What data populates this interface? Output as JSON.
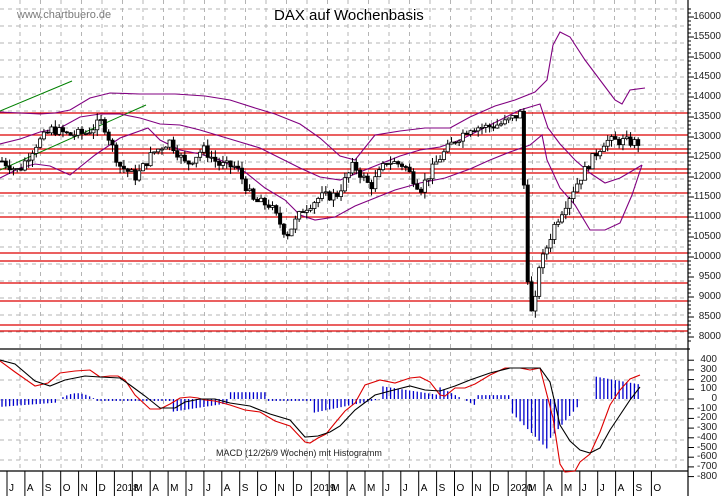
{
  "header": {
    "watermark": "www.chartbuero.de",
    "title": "DAX auf Wochenbasis"
  },
  "macd_panel": {
    "label": "MACD (12/26/9 Wochen) mit Histogramm"
  },
  "colors": {
    "grid": "#b4b4b4",
    "resistance_lines": "#dd0000",
    "bollinger_bands": "#800080",
    "trend_channel": "#008000",
    "candle_down": "#000000",
    "candle_up": "#ffffff",
    "macd_line": "#dd0000",
    "signal_line": "#000000",
    "histogram": "#0000cc"
  },
  "price_axis": {
    "ticks": [
      "16000",
      "15500",
      "15000",
      "14500",
      "14000",
      "13500",
      "13000",
      "12500",
      "12000",
      "11500",
      "11000",
      "10500",
      "10000",
      "9500",
      "9000",
      "8500",
      "8000"
    ]
  },
  "macd_axis": {
    "ticks": [
      "400",
      "300",
      "200",
      "100",
      "0",
      "-100",
      "-200",
      "-300",
      "-400",
      "-500",
      "-600",
      "-700",
      "-800"
    ]
  },
  "time_axis": {
    "labels": [
      "J",
      "A",
      "S",
      "O",
      "N",
      "D",
      "2018",
      "M",
      "A",
      "M",
      "J",
      "J",
      "A",
      "S",
      "O",
      "N",
      "D",
      "2019",
      "M",
      "A",
      "M",
      "J",
      "J",
      "A",
      "S",
      "O",
      "N",
      "D",
      "2020",
      "M",
      "A",
      "M",
      "J",
      "J",
      "A",
      "S",
      "O"
    ]
  },
  "chart_data": [
    {
      "type": "candlestick",
      "title": "DAX auf Wochenbasis",
      "xlabel": "",
      "ylabel": "",
      "ylim": [
        7800,
        16300
      ],
      "grid": true,
      "x_range": "Jul 2017 - Oct 2020 (weekly)",
      "approx_close_path": [
        {
          "date": "2017-07",
          "close": 12400
        },
        {
          "date": "2017-08",
          "close": 12150
        },
        {
          "date": "2017-09",
          "close": 12800
        },
        {
          "date": "2017-10",
          "close": 13200
        },
        {
          "date": "2017-11",
          "close": 13050
        },
        {
          "date": "2017-12",
          "close": 13100
        },
        {
          "date": "2018-01",
          "close": 13400
        },
        {
          "date": "2018-02",
          "close": 12300
        },
        {
          "date": "2018-03",
          "close": 12000
        },
        {
          "date": "2018-04",
          "close": 12600
        },
        {
          "date": "2018-05",
          "close": 12900
        },
        {
          "date": "2018-06",
          "close": 12300
        },
        {
          "date": "2018-07",
          "close": 12700
        },
        {
          "date": "2018-08",
          "close": 12300
        },
        {
          "date": "2018-09",
          "close": 12250
        },
        {
          "date": "2018-10",
          "close": 11400
        },
        {
          "date": "2018-11",
          "close": 11300
        },
        {
          "date": "2018-12",
          "close": 10550
        },
        {
          "date": "2019-01",
          "close": 11200
        },
        {
          "date": "2019-02",
          "close": 11500
        },
        {
          "date": "2019-03",
          "close": 11550
        },
        {
          "date": "2019-04",
          "close": 12300
        },
        {
          "date": "2019-05",
          "close": 11750
        },
        {
          "date": "2019-06",
          "close": 12400
        },
        {
          "date": "2019-07",
          "close": 12300
        },
        {
          "date": "2019-08",
          "close": 11700
        },
        {
          "date": "2019-09",
          "close": 12400
        },
        {
          "date": "2019-10",
          "close": 12900
        },
        {
          "date": "2019-11",
          "close": 13250
        },
        {
          "date": "2019-12",
          "close": 13250
        },
        {
          "date": "2020-01",
          "close": 13350
        },
        {
          "date": "2020-02",
          "close": 13600
        },
        {
          "date": "2020-03",
          "close": 9600
        },
        {
          "date": "2020-04",
          "close": 10800
        },
        {
          "date": "2020-05",
          "close": 11600
        },
        {
          "date": "2020-06",
          "close": 12300
        },
        {
          "date": "2020-07",
          "close": 12900
        },
        {
          "date": "2020-08",
          "close": 12900
        },
        {
          "date": "2020-09",
          "close": 12850
        }
      ],
      "extremes": {
        "high": 13800,
        "low": 8250
      },
      "horizontal_levels": [
        13600,
        13050,
        12700,
        12600,
        12200,
        12100,
        11600,
        11000,
        10100,
        9900,
        9350,
        8900,
        8300,
        8150
      ],
      "overlays": [
        "Bollinger Bands (upper, middle, lower)",
        "green rising trend channel (2017-2018)"
      ]
    },
    {
      "type": "line",
      "title": "MACD (12/26/9 Wochen) mit Histogramm",
      "ylim": [
        -850,
        450
      ],
      "series": [
        {
          "name": "MACD",
          "color": "#dd0000",
          "approx_values": [
            330,
            120,
            200,
            240,
            90,
            -140,
            -60,
            50,
            -50,
            -200,
            -280,
            -220,
            -100,
            120,
            180,
            300,
            50,
            -100,
            30,
            270,
            290,
            -80,
            -700,
            -550,
            0,
            300,
            350
          ]
        },
        {
          "name": "Signal",
          "color": "#000000",
          "approx_values": [
            350,
            150,
            210,
            230,
            110,
            -50,
            -100,
            40,
            -10,
            -150,
            -220,
            -300,
            -200,
            0,
            150,
            230,
            80,
            70,
            250,
            290,
            200,
            -350,
            -580,
            -300,
            50,
            250
          ]
        },
        {
          "name": "Histogramm",
          "color": "#0000cc",
          "range": [
            -520,
            250
          ]
        }
      ]
    }
  ]
}
